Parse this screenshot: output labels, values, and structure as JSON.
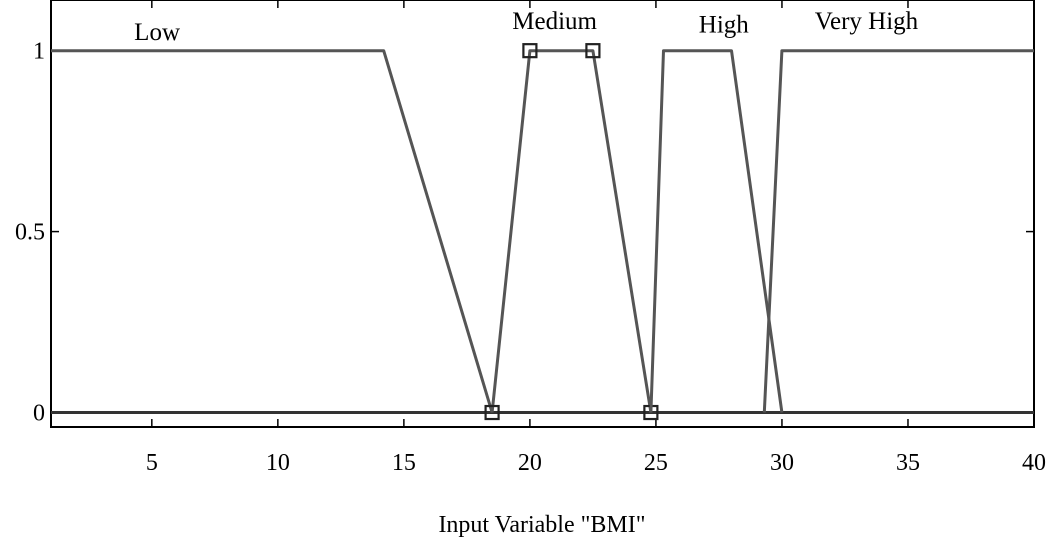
{
  "chart_data": {
    "type": "line",
    "title": "",
    "xlabel": "Input Variable \"BMI\"",
    "ylabel": "",
    "xlim": [
      1,
      40
    ],
    "ylim": [
      -0.04,
      1.14
    ],
    "xticks": [
      5,
      10,
      15,
      20,
      25,
      30,
      35,
      40
    ],
    "yticks": [
      {
        "value": 0,
        "label": "0"
      },
      {
        "value": 0.5,
        "label": "0.5"
      },
      {
        "value": 1,
        "label": "1"
      }
    ],
    "series": [
      {
        "name": "Low",
        "label_pos": [
          4.3,
          1.03
        ],
        "x": [
          1,
          14.2,
          18.5
        ],
        "y": [
          1,
          1,
          0
        ]
      },
      {
        "name": "Medium",
        "label_pos": [
          19.3,
          1.06
        ],
        "x": [
          18.5,
          20,
          22.5,
          24.8
        ],
        "y": [
          0,
          1,
          1,
          0
        ],
        "markers": true
      },
      {
        "name": "High",
        "label_pos": [
          26.7,
          1.05
        ],
        "x": [
          24.8,
          25.3,
          28,
          30
        ],
        "y": [
          0,
          1,
          1,
          0
        ]
      },
      {
        "name": "Very High",
        "label_pos": [
          31.3,
          1.06
        ],
        "x": [
          29.3,
          30,
          40
        ],
        "y": [
          0,
          1,
          1
        ]
      }
    ],
    "grid": false
  }
}
